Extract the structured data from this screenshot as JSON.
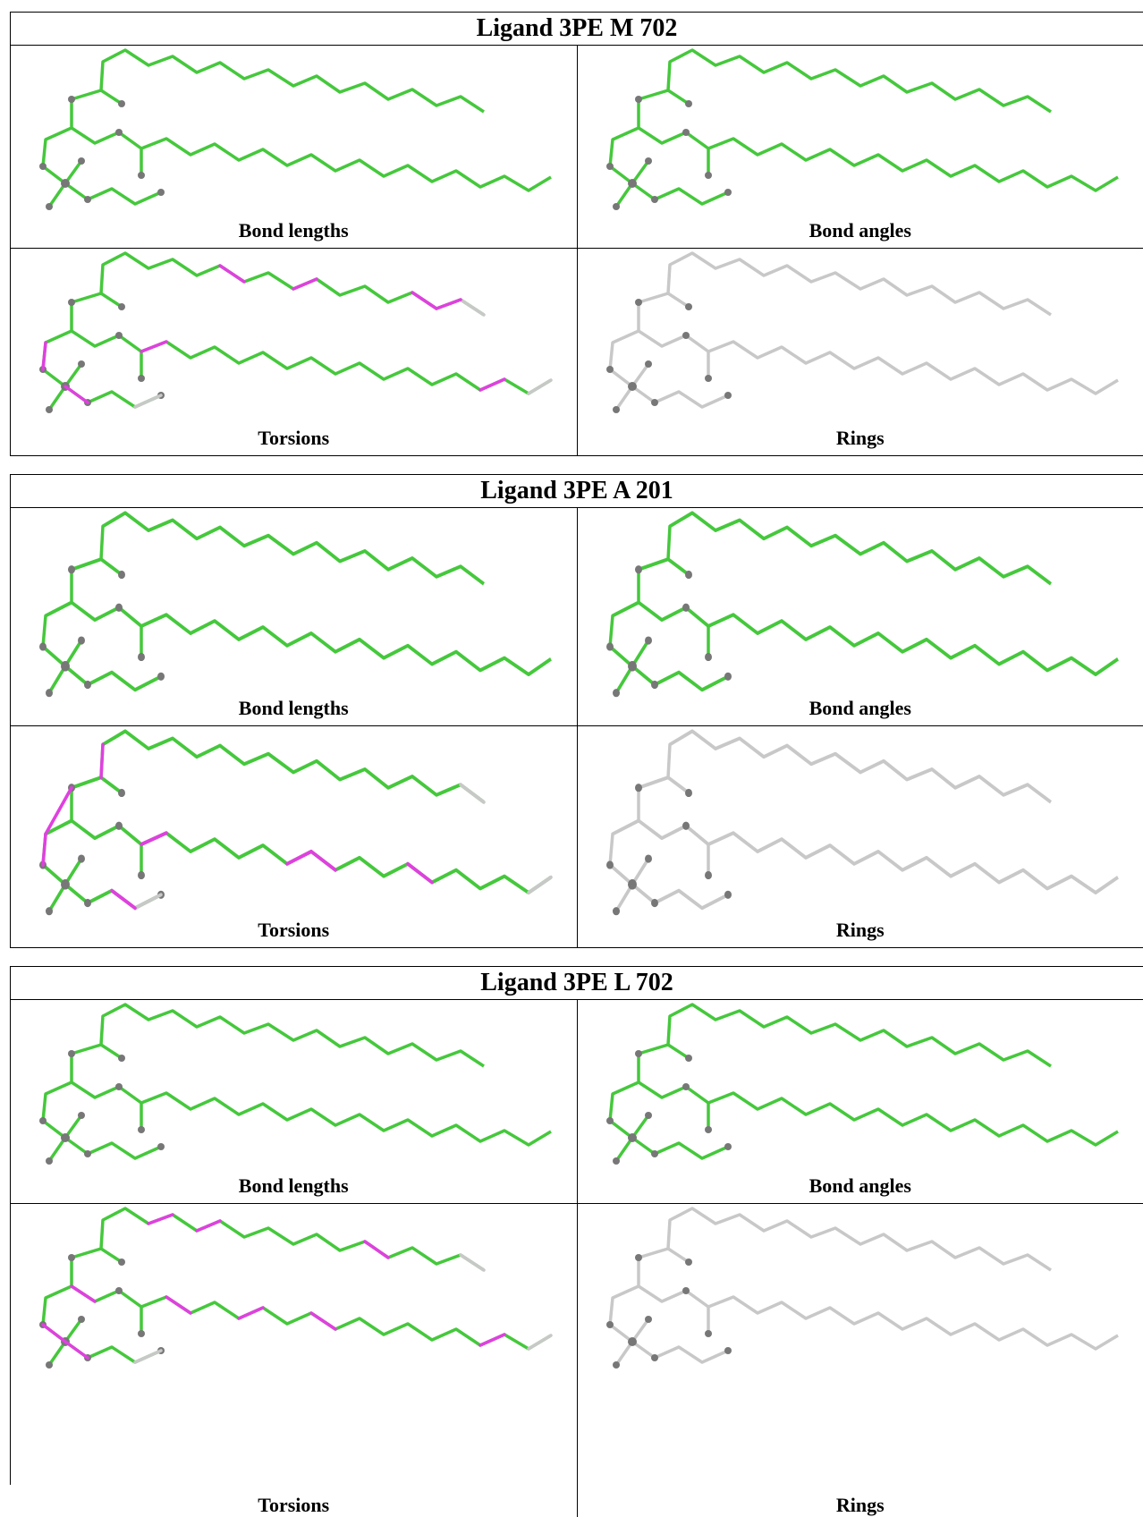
{
  "tables": [
    {
      "title": "Ligand 3PE M 702",
      "cells": [
        "Bond lengths",
        "Bond angles",
        "Torsions",
        "Rings"
      ]
    },
    {
      "title": "Ligand 3PE A 201",
      "cells": [
        "Bond lengths",
        "Bond angles",
        "Torsions",
        "Rings"
      ]
    },
    {
      "title": "Ligand 3PE L 702",
      "cells": [
        "Bond lengths",
        "Bond angles",
        "Torsions",
        "Rings"
      ]
    }
  ]
}
